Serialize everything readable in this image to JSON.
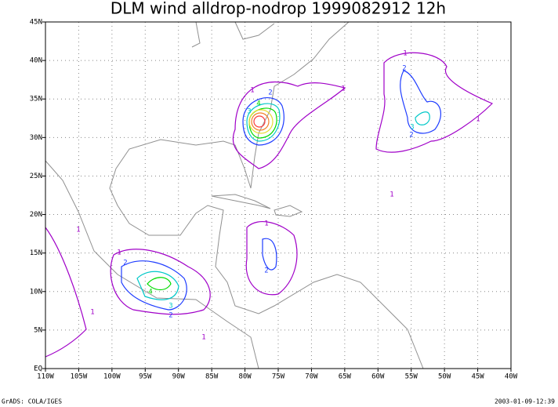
{
  "title": "DLM wind alldrop-nodrop 1999082912 12h",
  "xticks": [
    {
      "value": -110,
      "label": "110W"
    },
    {
      "value": -105,
      "label": "105W"
    },
    {
      "value": -100,
      "label": "100W"
    },
    {
      "value": -95,
      "label": "95W"
    },
    {
      "value": -90,
      "label": "90W"
    },
    {
      "value": -85,
      "label": "85W"
    },
    {
      "value": -80,
      "label": "80W"
    },
    {
      "value": -75,
      "label": "75W"
    },
    {
      "value": -70,
      "label": "70W"
    },
    {
      "value": -65,
      "label": "65W"
    },
    {
      "value": -60,
      "label": "60W"
    },
    {
      "value": -55,
      "label": "55W"
    },
    {
      "value": -50,
      "label": "50W"
    },
    {
      "value": -45,
      "label": "45W"
    },
    {
      "value": -40,
      "label": "40W"
    }
  ],
  "yticks": [
    {
      "value": 0,
      "label": "EQ"
    },
    {
      "value": 5,
      "label": "5N"
    },
    {
      "value": 10,
      "label": "10N"
    },
    {
      "value": 15,
      "label": "15N"
    },
    {
      "value": 20,
      "label": "20N"
    },
    {
      "value": 25,
      "label": "25N"
    },
    {
      "value": 30,
      "label": "30N"
    },
    {
      "value": 35,
      "label": "35N"
    },
    {
      "value": 40,
      "label": "40N"
    },
    {
      "value": 45,
      "label": "45N"
    }
  ],
  "footer_left": "GrADS: COLA/IGES",
  "footer_right": "2003-01-09-12:39",
  "contour_labels": [
    "1",
    "1",
    "2",
    "3",
    "4",
    "1",
    "2",
    "3",
    "1",
    "1",
    "2",
    "2",
    "1",
    "1",
    "2",
    "3",
    "4",
    "2",
    "1",
    "1",
    "1"
  ]
}
